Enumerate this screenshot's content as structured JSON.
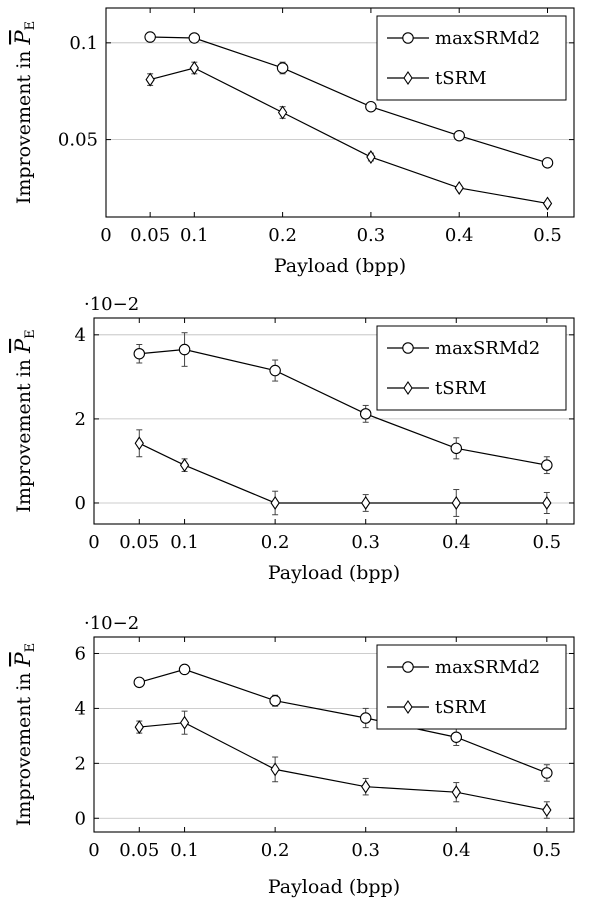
{
  "chart_data": [
    {
      "type": "line",
      "xlabel": "Payload (bpp)",
      "ylabel": "Improvement in",
      "ylabel_symbol": "P",
      "ylabel_subscript": "E",
      "scale_label": "",
      "x": [
        0.05,
        0.1,
        0.2,
        0.3,
        0.4,
        0.5
      ],
      "xlim": [
        0,
        0.53
      ],
      "ylim": [
        0.01,
        0.118
      ],
      "xticks": [
        "0",
        "0.05",
        "0.1",
        "0.2",
        "0.3",
        "0.4",
        "0.5"
      ],
      "yticks": [
        "0.05",
        "0.1"
      ],
      "grid": "horizontal",
      "legend": "top-right",
      "series": [
        {
          "name": "maxSRMd2",
          "marker": "circle",
          "values": [
            0.103,
            0.1025,
            0.087,
            0.067,
            0.052,
            0.038
          ],
          "errors": [
            0.001,
            0.001,
            0.003,
            0.002,
            0.001,
            0.001
          ]
        },
        {
          "name": "tSRM",
          "marker": "diamond",
          "values": [
            0.081,
            0.087,
            0.064,
            0.041,
            0.025,
            0.017
          ],
          "errors": [
            0.003,
            0.003,
            0.003,
            0.002,
            0.001,
            0.001
          ]
        }
      ]
    },
    {
      "type": "line",
      "xlabel": "Payload (bpp)",
      "ylabel": "Improvement in",
      "ylabel_symbol": "P",
      "ylabel_subscript": "E",
      "scale_label": "·10−2",
      "x": [
        0.05,
        0.1,
        0.2,
        0.3,
        0.4,
        0.5
      ],
      "xlim": [
        0,
        0.53
      ],
      "ylim": [
        -0.5,
        4.4
      ],
      "xticks": [
        "0",
        "0.05",
        "0.1",
        "0.2",
        "0.3",
        "0.4",
        "0.5"
      ],
      "yticks": [
        "0",
        "2",
        "4"
      ],
      "grid": "horizontal",
      "legend": "top-right",
      "series": [
        {
          "name": "maxSRMd2",
          "marker": "circle",
          "values": [
            3.55,
            3.65,
            3.15,
            2.12,
            1.3,
            0.9
          ],
          "errors": [
            0.22,
            0.4,
            0.25,
            0.2,
            0.25,
            0.2
          ]
        },
        {
          "name": "tSRM",
          "marker": "diamond",
          "values": [
            1.42,
            0.9,
            0.0,
            0.0,
            0.0,
            0.0
          ],
          "errors": [
            0.32,
            0.15,
            0.28,
            0.2,
            0.32,
            0.25
          ]
        }
      ]
    },
    {
      "type": "line",
      "xlabel": "Payload (bpp)",
      "ylabel": "Improvement in",
      "ylabel_symbol": "P",
      "ylabel_subscript": "E",
      "scale_label": "·10−2",
      "x": [
        0.05,
        0.1,
        0.2,
        0.3,
        0.4,
        0.5
      ],
      "xlim": [
        0,
        0.53
      ],
      "ylim": [
        -0.5,
        6.6
      ],
      "xticks": [
        "0",
        "0.05",
        "0.1",
        "0.2",
        "0.3",
        "0.4",
        "0.5"
      ],
      "yticks": [
        "0",
        "2",
        "4",
        "6"
      ],
      "grid": "horizontal",
      "legend": "top-right",
      "series": [
        {
          "name": "maxSRMd2",
          "marker": "circle",
          "values": [
            4.95,
            5.42,
            4.28,
            3.65,
            2.95,
            1.65
          ],
          "errors": [
            0.15,
            0.1,
            0.2,
            0.35,
            0.3,
            0.3
          ]
        },
        {
          "name": "tSRM",
          "marker": "diamond",
          "values": [
            3.32,
            3.48,
            1.78,
            1.15,
            0.95,
            0.3
          ],
          "errors": [
            0.22,
            0.42,
            0.45,
            0.3,
            0.35,
            0.3
          ]
        }
      ]
    }
  ]
}
